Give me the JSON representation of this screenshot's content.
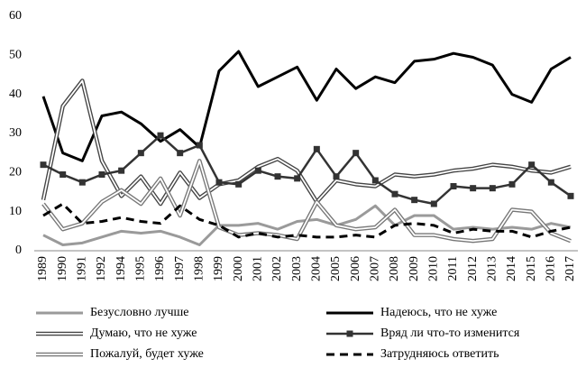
{
  "chart_data": {
    "type": "line",
    "categories": [
      "1989",
      "1990",
      "1991",
      "1992",
      "1994",
      "1995",
      "1996",
      "1997",
      "1998",
      "1999",
      "2000",
      "2001",
      "2002",
      "2003",
      "2004",
      "2005",
      "2006",
      "2007",
      "2008",
      "2009",
      "2010",
      "2011",
      "2012",
      "2013",
      "2014",
      "2015",
      "2016",
      "2017"
    ],
    "ylim": [
      0,
      60
    ],
    "yticks": [
      0,
      10,
      20,
      30,
      40,
      50,
      60
    ],
    "series": [
      {
        "name": "Безусловно лучше",
        "color": "#9a9a9a",
        "line_style": "solid",
        "values": [
          4,
          1.5,
          2,
          3.5,
          5,
          4.5,
          5,
          3.5,
          1.5,
          6.5,
          6.5,
          7,
          5.5,
          7.5,
          8,
          6.5,
          8,
          11.5,
          6.5,
          9,
          9,
          5.5,
          6,
          5.5,
          6,
          5.5,
          7,
          6
        ]
      },
      {
        "name": "Надеюсь, что не хуже",
        "color": "#000000",
        "line_style": "solid",
        "values": [
          39.5,
          25,
          23,
          34.5,
          35.5,
          32.5,
          28,
          31,
          26.5,
          46,
          51,
          42,
          44.5,
          47,
          38.5,
          46.5,
          41.5,
          44.5,
          43,
          48.5,
          49,
          50.5,
          49.5,
          47.5,
          40,
          38,
          46.5,
          49.5
        ]
      },
      {
        "name": "Думаю, что не хуже",
        "color": "#444444",
        "line_style": "double",
        "values": [
          13,
          37,
          43.5,
          23,
          14,
          19,
          12,
          20,
          13.5,
          17,
          18,
          21.5,
          23.5,
          20.5,
          12.5,
          18,
          17,
          16.5,
          19.5,
          19,
          19.5,
          20.5,
          21,
          22,
          21.5,
          20.5,
          20,
          21.5
        ]
      },
      {
        "name": "Вряд ли что-то изменится",
        "color": "#333333",
        "line_style": "markers",
        "values": [
          22,
          19.5,
          17.5,
          19.5,
          20.5,
          25,
          29.5,
          25,
          27,
          17.5,
          17,
          20.5,
          19,
          18.5,
          26,
          19,
          25,
          18,
          14.5,
          13,
          12,
          16.5,
          16,
          16,
          17,
          22,
          17.5,
          14
        ]
      },
      {
        "name": "Пожалуй, будет хуже",
        "color": "#777777",
        "line_style": "double",
        "values": [
          12,
          5.5,
          7,
          12.5,
          15.5,
          12,
          18.5,
          9,
          23,
          6,
          4,
          4.5,
          4,
          3,
          12.5,
          6.5,
          5.5,
          6,
          10.5,
          4,
          4,
          3,
          2.5,
          3,
          10.5,
          10,
          4.5,
          2.5
        ]
      },
      {
        "name": "Затрудняюсь ответить",
        "color": "#000000",
        "line_style": "dashed",
        "values": [
          9,
          12,
          7,
          7.5,
          8.5,
          7.5,
          7,
          11.5,
          8,
          6.5,
          3.5,
          4.5,
          3.5,
          4,
          3.5,
          3.5,
          4,
          3.5,
          6.5,
          7,
          6.5,
          4.5,
          5.5,
          5,
          5,
          3.5,
          5,
          6
        ]
      }
    ]
  }
}
